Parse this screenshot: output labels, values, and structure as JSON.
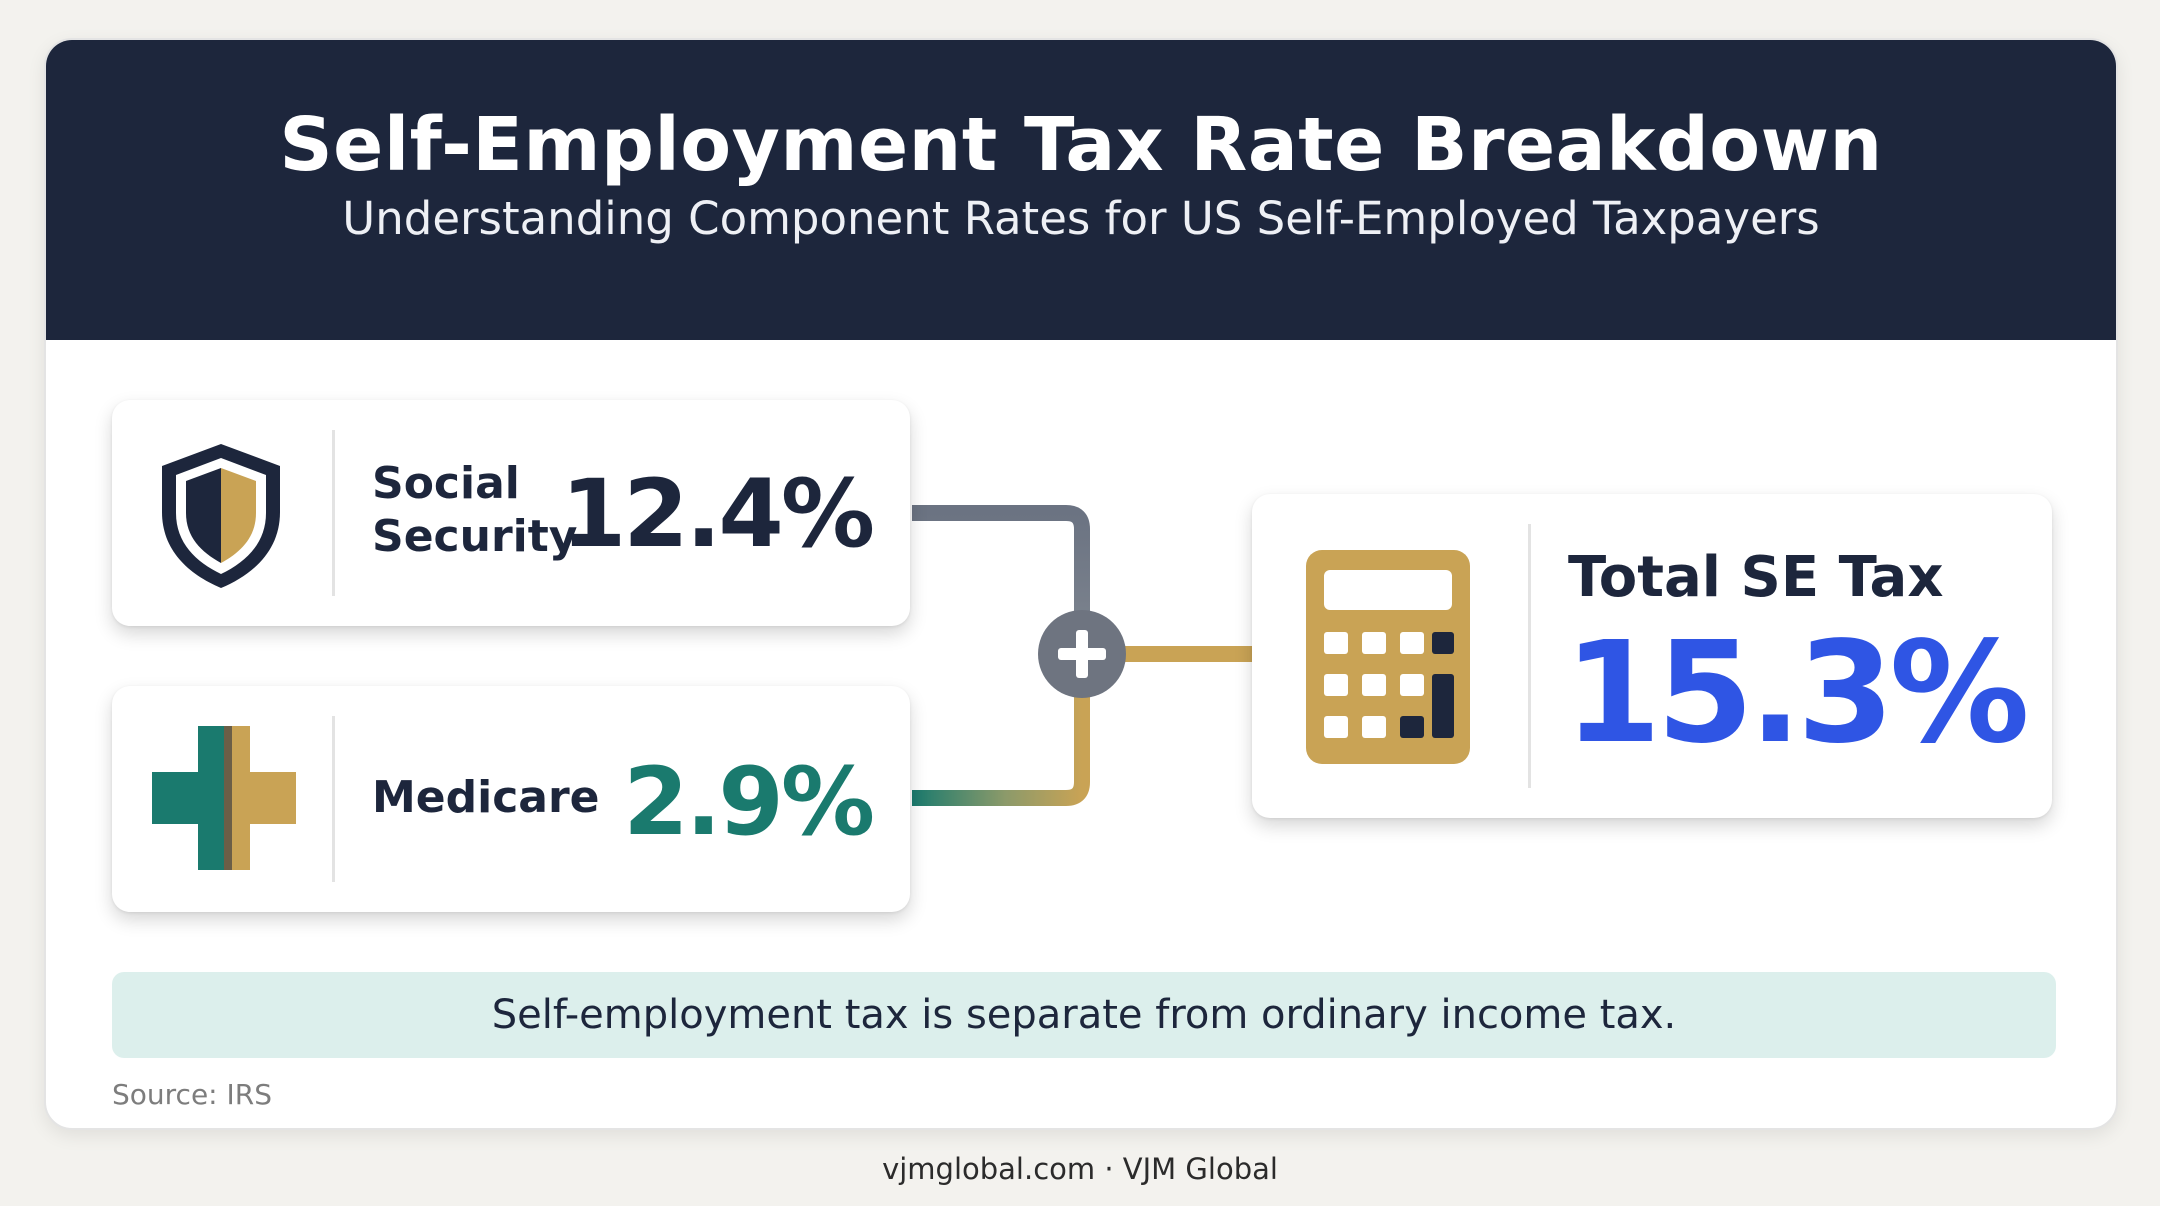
{
  "header": {
    "title": "Self-Employment Tax Rate Breakdown",
    "subtitle": "Understanding Component Rates for US Self-Employed Taxpayers"
  },
  "components": [
    {
      "label_line1": "Social",
      "label_line2": "Security",
      "value": "12.4%",
      "icon": "shield-icon",
      "color": "#1d263c"
    },
    {
      "label": "Medicare",
      "value": "2.9%",
      "icon": "medical-cross-icon",
      "color": "#1a7a6e"
    }
  ],
  "operator": {
    "icon": "plus-icon"
  },
  "total": {
    "label": "Total SE Tax",
    "value": "15.3%",
    "icon": "calculator-icon",
    "color": "#2f55e4"
  },
  "note": "Self-employment tax is separate from ordinary income tax.",
  "source": "Source: IRS",
  "footer": "vjmglobal.com · VJM Global",
  "colors": {
    "navy": "#1d263c",
    "gold": "#c9a355",
    "teal": "#1a7a6e",
    "blue": "#2f55e4",
    "slate": "#6b7382"
  }
}
